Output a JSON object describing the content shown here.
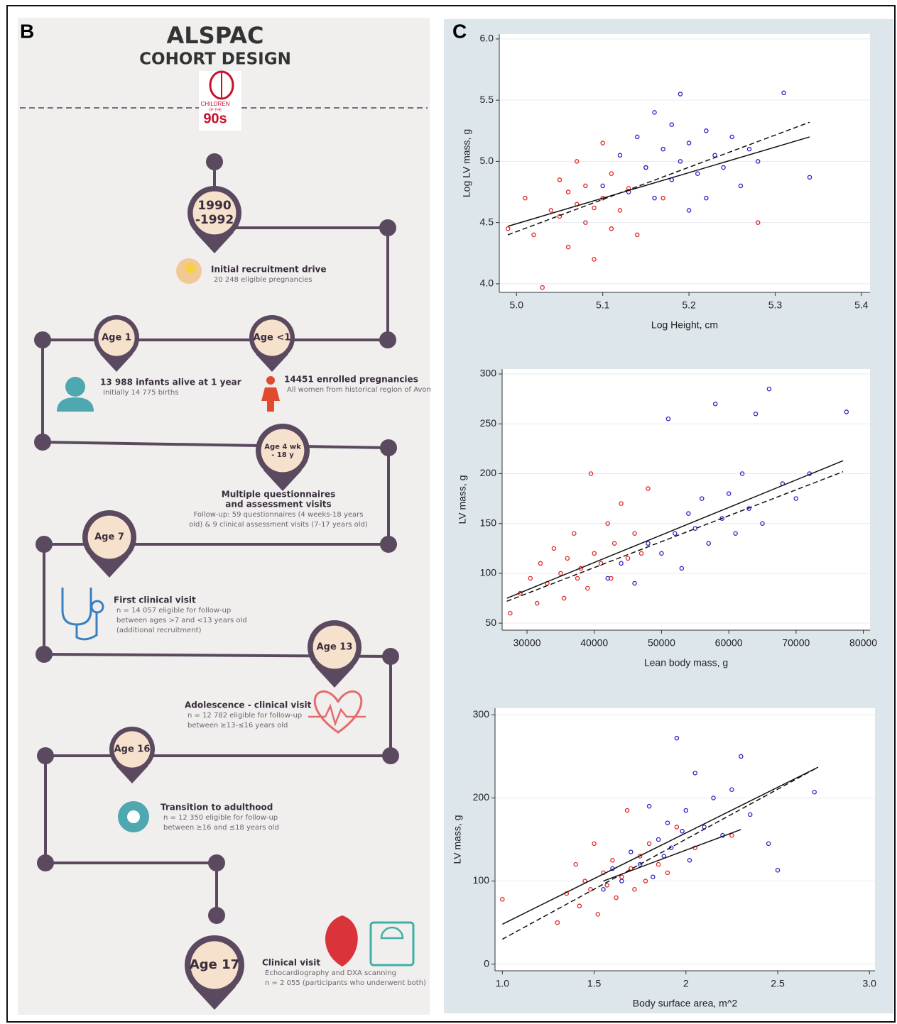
{
  "panel_b": {
    "label": "B",
    "title": "ALSPAC",
    "subtitle": "COHORT DESIGN",
    "logo": [
      "CHILDREN",
      "OF THE",
      "90s"
    ],
    "stages": [
      {
        "pin": [
          "1990",
          "-1992"
        ],
        "heading": [
          "Initial recruitment drive"
        ],
        "details": [
          "20 248 eligible pregnancies"
        ]
      },
      {
        "pin": [
          "Age <1"
        ],
        "heading": [
          "14451 enrolled pregnancies"
        ],
        "details": [
          "All women from historical region of Avon"
        ]
      },
      {
        "pin": [
          "Age 1"
        ],
        "heading": [
          "13 988 infants alive at 1 year"
        ],
        "details": [
          "Initially 14 775 births"
        ]
      },
      {
        "pin": [
          "Age 4 wk",
          "- 18 y"
        ],
        "heading": [
          "Multiple questionnaires",
          "and assessment visits"
        ],
        "details": [
          "Follow-up: 59 questionnaires (4 weeks-18 years",
          "old) & 9 clinical assessment visits (7-17 years old)"
        ]
      },
      {
        "pin": [
          "Age 7"
        ],
        "heading": [
          "First clinical visit"
        ],
        "details": [
          "n = 14 057 eligible for follow-up",
          "between ages >7 and <13 years old",
          "(additional recruitment)"
        ]
      },
      {
        "pin": [
          "Age 13"
        ],
        "heading": [
          "Adolescence - clinical visit"
        ],
        "details": [
          "n = 12 782 eligible for follow-up",
          "between ≥13-≤16 years old"
        ]
      },
      {
        "pin": [
          "Age 16"
        ],
        "heading": [
          "Transition to adulthood"
        ],
        "details": [
          "n = 12 350 eligible for follow-up",
          "between ≥16 and ≤18 years old"
        ]
      },
      {
        "pin": [
          "Age 17"
        ],
        "heading": [
          "Clinical visit"
        ],
        "details": [
          "Echocardiography and DXA scanning",
          "n = 2 055 (participants who underwent both)"
        ]
      }
    ]
  },
  "panel_c": {
    "label": "C"
  },
  "chart_data": [
    {
      "type": "scatter",
      "x_label": "Log Height, cm",
      "y_label": "Log LV mass, g",
      "grid": true,
      "xlim": [
        4.98,
        5.41
      ],
      "ylim": [
        3.93,
        6.04
      ],
      "xticks": [
        {
          "value": 5.0,
          "label": "5.0"
        },
        5.1,
        5.2,
        5.3,
        5.4
      ],
      "yticks": [
        {
          "value": 4.0,
          "label": "4.0"
        },
        4.5,
        {
          "value": 5.0,
          "label": "5.0"
        },
        5.5,
        {
          "value": 6.0,
          "label": "6.0"
        }
      ],
      "series": [
        {
          "color": "#e3231f",
          "x": [
            4.99,
            5.01,
            5.02,
            5.03,
            5.04,
            5.05,
            5.05,
            5.06,
            5.06,
            5.07,
            5.07,
            5.08,
            5.08,
            5.09,
            5.09,
            5.1,
            5.1,
            5.11,
            5.11,
            5.12,
            5.13,
            5.14,
            5.15,
            5.17,
            5.28
          ],
          "y": [
            4.45,
            4.7,
            4.4,
            3.97,
            4.6,
            4.55,
            4.85,
            4.3,
            4.75,
            4.65,
            5.0,
            4.5,
            4.8,
            4.2,
            4.62,
            4.7,
            5.15,
            4.45,
            4.9,
            4.6,
            4.78,
            4.4,
            4.95,
            4.7,
            4.5
          ]
        },
        {
          "color": "#2a22c8",
          "x": [
            5.1,
            5.12,
            5.13,
            5.14,
            5.15,
            5.16,
            5.16,
            5.17,
            5.18,
            5.18,
            5.19,
            5.19,
            5.2,
            5.2,
            5.21,
            5.22,
            5.22,
            5.23,
            5.24,
            5.25,
            5.26,
            5.27,
            5.28,
            5.31,
            5.34
          ],
          "y": [
            4.8,
            5.05,
            4.75,
            5.2,
            4.95,
            5.4,
            4.7,
            5.1,
            4.85,
            5.3,
            5.0,
            5.55,
            4.6,
            5.15,
            4.9,
            5.25,
            4.7,
            5.05,
            4.95,
            5.2,
            4.8,
            5.1,
            5.0,
            5.56,
            4.87
          ]
        }
      ],
      "fit_lines": [
        {
          "style": "solid",
          "x": [
            4.99,
            5.34
          ],
          "y": [
            4.47,
            5.2
          ]
        },
        {
          "style": "dashed",
          "x": [
            4.99,
            5.34
          ],
          "y": [
            4.4,
            5.32
          ]
        }
      ]
    },
    {
      "type": "scatter",
      "x_label": "Lean body mass, g",
      "y_label": "LV mass, g",
      "grid": true,
      "xlim": [
        26300,
        81000
      ],
      "ylim": [
        43,
        305
      ],
      "xticks": [
        30000,
        40000,
        50000,
        60000,
        70000,
        80000
      ],
      "yticks": [
        50,
        100,
        150,
        200,
        250,
        300
      ],
      "series": [
        {
          "color": "#e3231f",
          "x": [
            27500,
            29000,
            30500,
            31500,
            32000,
            33000,
            34000,
            35000,
            35500,
            36000,
            37000,
            37500,
            38000,
            39000,
            39500,
            40000,
            41000,
            42000,
            42500,
            43000,
            44000,
            45000,
            46000,
            47000,
            48000
          ],
          "y": [
            60,
            80,
            95,
            70,
            110,
            90,
            125,
            100,
            75,
            115,
            140,
            95,
            105,
            85,
            200,
            120,
            110,
            150,
            95,
            130,
            170,
            115,
            140,
            120,
            185
          ]
        },
        {
          "color": "#2a22c8",
          "x": [
            42000,
            44000,
            46000,
            48000,
            50000,
            51000,
            52000,
            53000,
            54000,
            55000,
            56000,
            57000,
            58000,
            59000,
            60000,
            61000,
            62000,
            63000,
            64000,
            65000,
            66000,
            68000,
            70000,
            72000,
            77500
          ],
          "y": [
            95,
            110,
            90,
            130,
            120,
            255,
            140,
            105,
            160,
            145,
            175,
            130,
            270,
            155,
            180,
            140,
            200,
            165,
            260,
            150,
            285,
            190,
            175,
            200,
            262
          ]
        }
      ],
      "fit_lines": [
        {
          "style": "solid",
          "x": [
            27000,
            77000
          ],
          "y": [
            75,
            213
          ]
        },
        {
          "style": "dashed",
          "x": [
            27000,
            77000
          ],
          "y": [
            72,
            202
          ]
        }
      ]
    },
    {
      "type": "scatter",
      "x_label": "Body surface area, m^2",
      "y_label": "LV mass, g",
      "grid": true,
      "xlim": [
        0.96,
        3.03
      ],
      "ylim": [
        -8,
        308
      ],
      "xticks": [
        {
          "value": 1.0,
          "label": "1.0"
        },
        1.5,
        2,
        2.5,
        {
          "value": 3.0,
          "label": "3.0"
        }
      ],
      "yticks": [
        0,
        100,
        200,
        300
      ],
      "series": [
        {
          "color": "#e3231f",
          "x": [
            1.0,
            1.3,
            1.35,
            1.4,
            1.42,
            1.45,
            1.48,
            1.5,
            1.52,
            1.55,
            1.57,
            1.6,
            1.62,
            1.65,
            1.68,
            1.7,
            1.72,
            1.75,
            1.78,
            1.8,
            1.85,
            1.9,
            1.95,
            2.05,
            2.25
          ],
          "y": [
            78,
            50,
            85,
            120,
            70,
            100,
            90,
            145,
            60,
            110,
            95,
            125,
            80,
            105,
            185,
            115,
            90,
            130,
            100,
            145,
            120,
            110,
            165,
            140,
            155
          ]
        },
        {
          "color": "#2a22c8",
          "x": [
            1.55,
            1.6,
            1.65,
            1.7,
            1.75,
            1.8,
            1.82,
            1.85,
            1.88,
            1.9,
            1.92,
            1.95,
            1.98,
            2.0,
            2.02,
            2.05,
            2.1,
            2.15,
            2.2,
            2.25,
            2.3,
            2.35,
            2.45,
            2.5,
            2.7
          ],
          "y": [
            90,
            115,
            100,
            135,
            120,
            190,
            105,
            150,
            130,
            170,
            140,
            272,
            160,
            185,
            125,
            230,
            165,
            200,
            155,
            210,
            250,
            180,
            145,
            113,
            207
          ]
        }
      ],
      "fit_lines": [
        {
          "style": "solid",
          "x": [
            1.0,
            2.72
          ],
          "y": [
            48,
            237
          ]
        },
        {
          "style": "dashed",
          "x": [
            1.0,
            2.72
          ],
          "y": [
            30,
            237
          ]
        },
        {
          "style": "solid",
          "x": [
            1.55,
            2.3
          ],
          "y": [
            100,
            162
          ]
        }
      ]
    }
  ]
}
